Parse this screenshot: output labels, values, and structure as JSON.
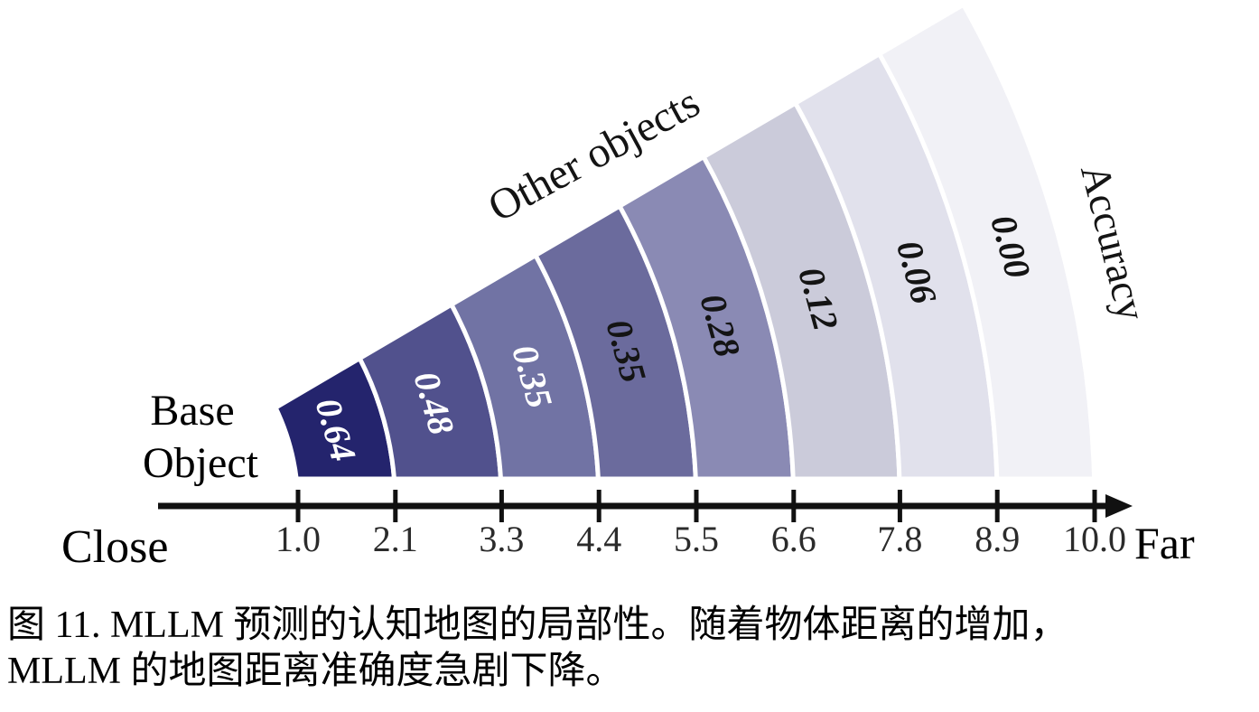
{
  "chart_data": {
    "type": "bar",
    "variant": "polar-fan",
    "title": "",
    "series_name": "Accuracy",
    "bin_edges": [
      1.0,
      2.1,
      3.3,
      4.4,
      5.5,
      6.6,
      7.8,
      8.9,
      10.0
    ],
    "values": [
      0.64,
      0.48,
      0.35,
      0.35,
      0.28,
      0.12,
      0.06,
      0
    ],
    "value_labels": [
      "0.64",
      "0.48",
      "0.35",
      "0.35",
      "0.28",
      "0.12",
      "0.06",
      "0.00"
    ],
    "x_tick_labels": [
      "1.0",
      "2.1",
      "3.3",
      "4.4",
      "5.5",
      "6.6",
      "7.8",
      "8.9",
      "10.0"
    ],
    "xlim": [
      1.0,
      10.0
    ],
    "grid": false,
    "legend": "none",
    "x_axis_left_label": "Close",
    "x_axis_right_label": "Far",
    "origin_label_line1": "Base",
    "origin_label_line2": "Object",
    "arc_top_label": "Other objects",
    "value_axis_label": "Accuracy",
    "segment_colors": [
      "#24246d",
      "#51518d",
      "#7173a4",
      "#6b6b9d",
      "#8a8ab4",
      "#cbcbda",
      "#e1e1ec",
      "#f1f1f6"
    ],
    "value_label_colors": [
      "#ffffff",
      "#ffffff",
      "#ffffff",
      "#141414",
      "#141414",
      "#141414",
      "#141414",
      "#141414"
    ],
    "axis_color": "#111111",
    "tick_label_color": "#2b2b2b"
  },
  "caption": {
    "line1": "图 11. MLLM 预测的认知地图的局部性。随着物体距离的增加，",
    "line2": "MLLM 的地图距离准确度急剧下降。"
  }
}
